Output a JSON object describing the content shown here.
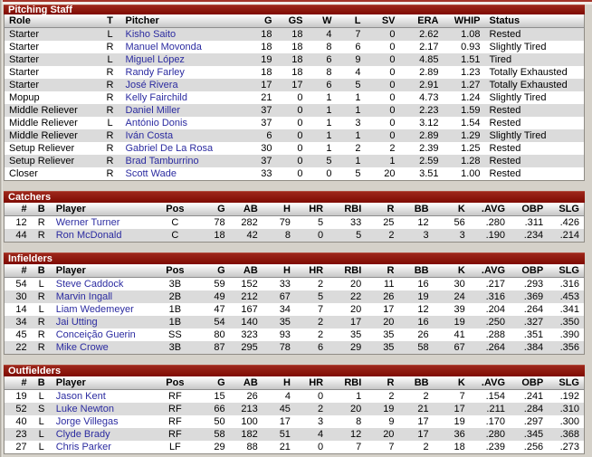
{
  "colors": {
    "page_bg": "#d5d1c9",
    "title_bar": "#870d04",
    "title_bar_highlight": "#b04a3c",
    "top_accent_line": "#a43429",
    "row_alt": "#dbdbdb",
    "header_gradient_bottom": "#c7c7c7",
    "player_link": "#2b2ba0"
  },
  "sections": [
    {
      "id": "pitching-staff",
      "kind": "pitching",
      "title": "Pitching Staff",
      "columns": [
        "Role",
        "T",
        "Pitcher",
        "G",
        "GS",
        "W",
        "L",
        "SV",
        "ERA",
        "WHIP",
        "Status"
      ],
      "rows": [
        [
          "Starter",
          "L",
          "Kisho Saito",
          "18",
          "18",
          "4",
          "7",
          "0",
          "2.62",
          "1.08",
          "Rested"
        ],
        [
          "Starter",
          "R",
          "Manuel Movonda",
          "18",
          "18",
          "8",
          "6",
          "0",
          "2.17",
          "0.93",
          "Slightly Tired"
        ],
        [
          "Starter",
          "L",
          "Miguel López",
          "19",
          "18",
          "6",
          "9",
          "0",
          "4.85",
          "1.51",
          "Tired"
        ],
        [
          "Starter",
          "R",
          "Randy Farley",
          "18",
          "18",
          "8",
          "4",
          "0",
          "2.89",
          "1.23",
          "Totally Exhausted"
        ],
        [
          "Starter",
          "R",
          "José Rivera",
          "17",
          "17",
          "6",
          "5",
          "0",
          "2.91",
          "1.27",
          "Totally Exhausted"
        ],
        [
          "Mopup",
          "R",
          "Kelly Fairchild",
          "21",
          "0",
          "1",
          "1",
          "0",
          "4.73",
          "1.24",
          "Slightly Tired"
        ],
        [
          "Middle Reliever",
          "R",
          "Daniel Miller",
          "37",
          "0",
          "1",
          "1",
          "0",
          "2.23",
          "1.59",
          "Rested"
        ],
        [
          "Middle Reliever",
          "L",
          "António Donis",
          "37",
          "0",
          "1",
          "3",
          "0",
          "3.12",
          "1.54",
          "Rested"
        ],
        [
          "Middle Reliever",
          "R",
          "Iván Costa",
          "6",
          "0",
          "1",
          "1",
          "0",
          "2.89",
          "1.29",
          "Slightly Tired"
        ],
        [
          "Setup Reliever",
          "R",
          "Gabriel De La Rosa",
          "30",
          "0",
          "1",
          "2",
          "2",
          "2.39",
          "1.25",
          "Rested"
        ],
        [
          "Setup Reliever",
          "R",
          "Brad Tamburrino",
          "37",
          "0",
          "5",
          "1",
          "1",
          "2.59",
          "1.28",
          "Rested"
        ],
        [
          "Closer",
          "R",
          "Scott Wade",
          "33",
          "0",
          "0",
          "5",
          "20",
          "3.51",
          "1.00",
          "Rested"
        ]
      ]
    },
    {
      "id": "catchers",
      "kind": "batting",
      "title": "Catchers",
      "columns": [
        "#",
        "B",
        "Player",
        "Pos",
        "G",
        "AB",
        "H",
        "HR",
        "RBI",
        "R",
        "BB",
        "K",
        ".AVG",
        "OBP",
        "SLG"
      ],
      "rows": [
        [
          "12",
          "R",
          "Werner Turner",
          "C",
          "78",
          "282",
          "79",
          "5",
          "33",
          "25",
          "12",
          "56",
          ".280",
          ".311",
          ".426"
        ],
        [
          "44",
          "R",
          "Ron McDonald",
          "C",
          "18",
          "42",
          "8",
          "0",
          "5",
          "2",
          "3",
          "3",
          ".190",
          ".234",
          ".214"
        ]
      ]
    },
    {
      "id": "infielders",
      "kind": "batting",
      "title": "Infielders",
      "columns": [
        "#",
        "B",
        "Player",
        "Pos",
        "G",
        "AB",
        "H",
        "HR",
        "RBI",
        "R",
        "BB",
        "K",
        ".AVG",
        "OBP",
        "SLG"
      ],
      "rows": [
        [
          "54",
          "L",
          "Steve Caddock",
          "3B",
          "59",
          "152",
          "33",
          "2",
          "20",
          "11",
          "16",
          "30",
          ".217",
          ".293",
          ".316"
        ],
        [
          "30",
          "R",
          "Marvin Ingall",
          "2B",
          "49",
          "212",
          "67",
          "5",
          "22",
          "26",
          "19",
          "24",
          ".316",
          ".369",
          ".453"
        ],
        [
          "14",
          "L",
          "Liam Wedemeyer",
          "1B",
          "47",
          "167",
          "34",
          "7",
          "20",
          "17",
          "12",
          "39",
          ".204",
          ".264",
          ".341"
        ],
        [
          "34",
          "R",
          "Jai Utting",
          "1B",
          "54",
          "140",
          "35",
          "2",
          "17",
          "20",
          "16",
          "19",
          ".250",
          ".327",
          ".350"
        ],
        [
          "45",
          "R",
          "Conceição Guerin",
          "SS",
          "80",
          "323",
          "93",
          "2",
          "35",
          "35",
          "26",
          "41",
          ".288",
          ".351",
          ".390"
        ],
        [
          "22",
          "R",
          "Mike Crowe",
          "3B",
          "87",
          "295",
          "78",
          "6",
          "29",
          "35",
          "58",
          "67",
          ".264",
          ".384",
          ".356"
        ]
      ]
    },
    {
      "id": "outfielders",
      "kind": "batting",
      "title": "Outfielders",
      "columns": [
        "#",
        "B",
        "Player",
        "Pos",
        "G",
        "AB",
        "H",
        "HR",
        "RBI",
        "R",
        "BB",
        "K",
        ".AVG",
        "OBP",
        "SLG"
      ],
      "rows": [
        [
          "19",
          "L",
          "Jason Kent",
          "RF",
          "15",
          "26",
          "4",
          "0",
          "1",
          "2",
          "2",
          "7",
          ".154",
          ".241",
          ".192"
        ],
        [
          "52",
          "S",
          "Luke Newton",
          "RF",
          "66",
          "213",
          "45",
          "2",
          "20",
          "19",
          "21",
          "17",
          ".211",
          ".284",
          ".310"
        ],
        [
          "40",
          "L",
          "Jorge Villegas",
          "RF",
          "50",
          "100",
          "17",
          "3",
          "8",
          "9",
          "17",
          "19",
          ".170",
          ".297",
          ".300"
        ],
        [
          "23",
          "L",
          "Clyde Brady",
          "RF",
          "58",
          "182",
          "51",
          "4",
          "12",
          "20",
          "17",
          "36",
          ".280",
          ".345",
          ".368"
        ],
        [
          "27",
          "L",
          "Chris Parker",
          "LF",
          "29",
          "88",
          "21",
          "0",
          "7",
          "7",
          "2",
          "18",
          ".239",
          ".256",
          ".273"
        ]
      ]
    }
  ]
}
